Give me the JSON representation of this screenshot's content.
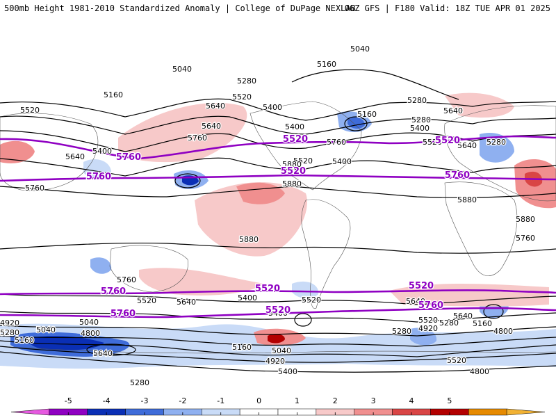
{
  "header": {
    "title_left": "500mb Height 1981-2010 Standardized Anomaly | College of DuPage NEXLAB",
    "title_right": "06Z GFS | F180 Valid: 18Z TUE APR 01 2025"
  },
  "contour_labels": {
    "black": [
      "5040",
      "5040",
      "5160",
      "5280",
      "5520",
      "5280",
      "5160",
      "5400",
      "5640",
      "5520",
      "5640",
      "5400",
      "5160",
      "5280",
      "5640",
      "5400",
      "5520",
      "5760",
      "5400",
      "5640",
      "5760",
      "5640",
      "5280",
      "5400",
      "5520",
      "5880",
      "5760",
      "5880",
      "5880",
      "5880",
      "5880",
      "5760",
      "5640",
      "5520",
      "5760",
      "5400",
      "5640",
      "5520",
      "5640",
      "5520",
      "5400",
      "5280",
      "5160",
      "5040",
      "4920",
      "4800",
      "5160",
      "5280",
      "5040",
      "4920",
      "5160",
      "5040",
      "4920",
      "5400",
      "5520",
      "5640",
      "5280",
      "4800",
      "4800",
      "5280"
    ],
    "purple": [
      "5520",
      "5760",
      "5520",
      "5760",
      "5520",
      "5760",
      "5520",
      "5760",
      "5520",
      "5760",
      "5520",
      "5760"
    ]
  },
  "colorbar": {
    "tick_labels": [
      "-5",
      "-4",
      "-3",
      "-2",
      "-1",
      "0",
      "1",
      "2",
      "3",
      "4",
      "5"
    ],
    "colors": [
      "#e659e0",
      "#8f00c2",
      "#0a2fb5",
      "#3f6cd9",
      "#8fb0f0",
      "#c9dbf7",
      "#ffffff",
      "#ffffff",
      "#f7c9c9",
      "#f08f8f",
      "#d94545",
      "#b30000",
      "#e68a00",
      "#f2b233"
    ]
  },
  "anomaly_colors": {
    "neg1": "#c9dbf7",
    "neg2": "#8fb0f0",
    "neg3": "#3f6cd9",
    "neg4": "#0a2fb5",
    "neg5": "#8f00c2",
    "pos1": "#f7c9c9",
    "pos2": "#f08f8f",
    "pos3": "#d94545",
    "pos4": "#b30000"
  }
}
